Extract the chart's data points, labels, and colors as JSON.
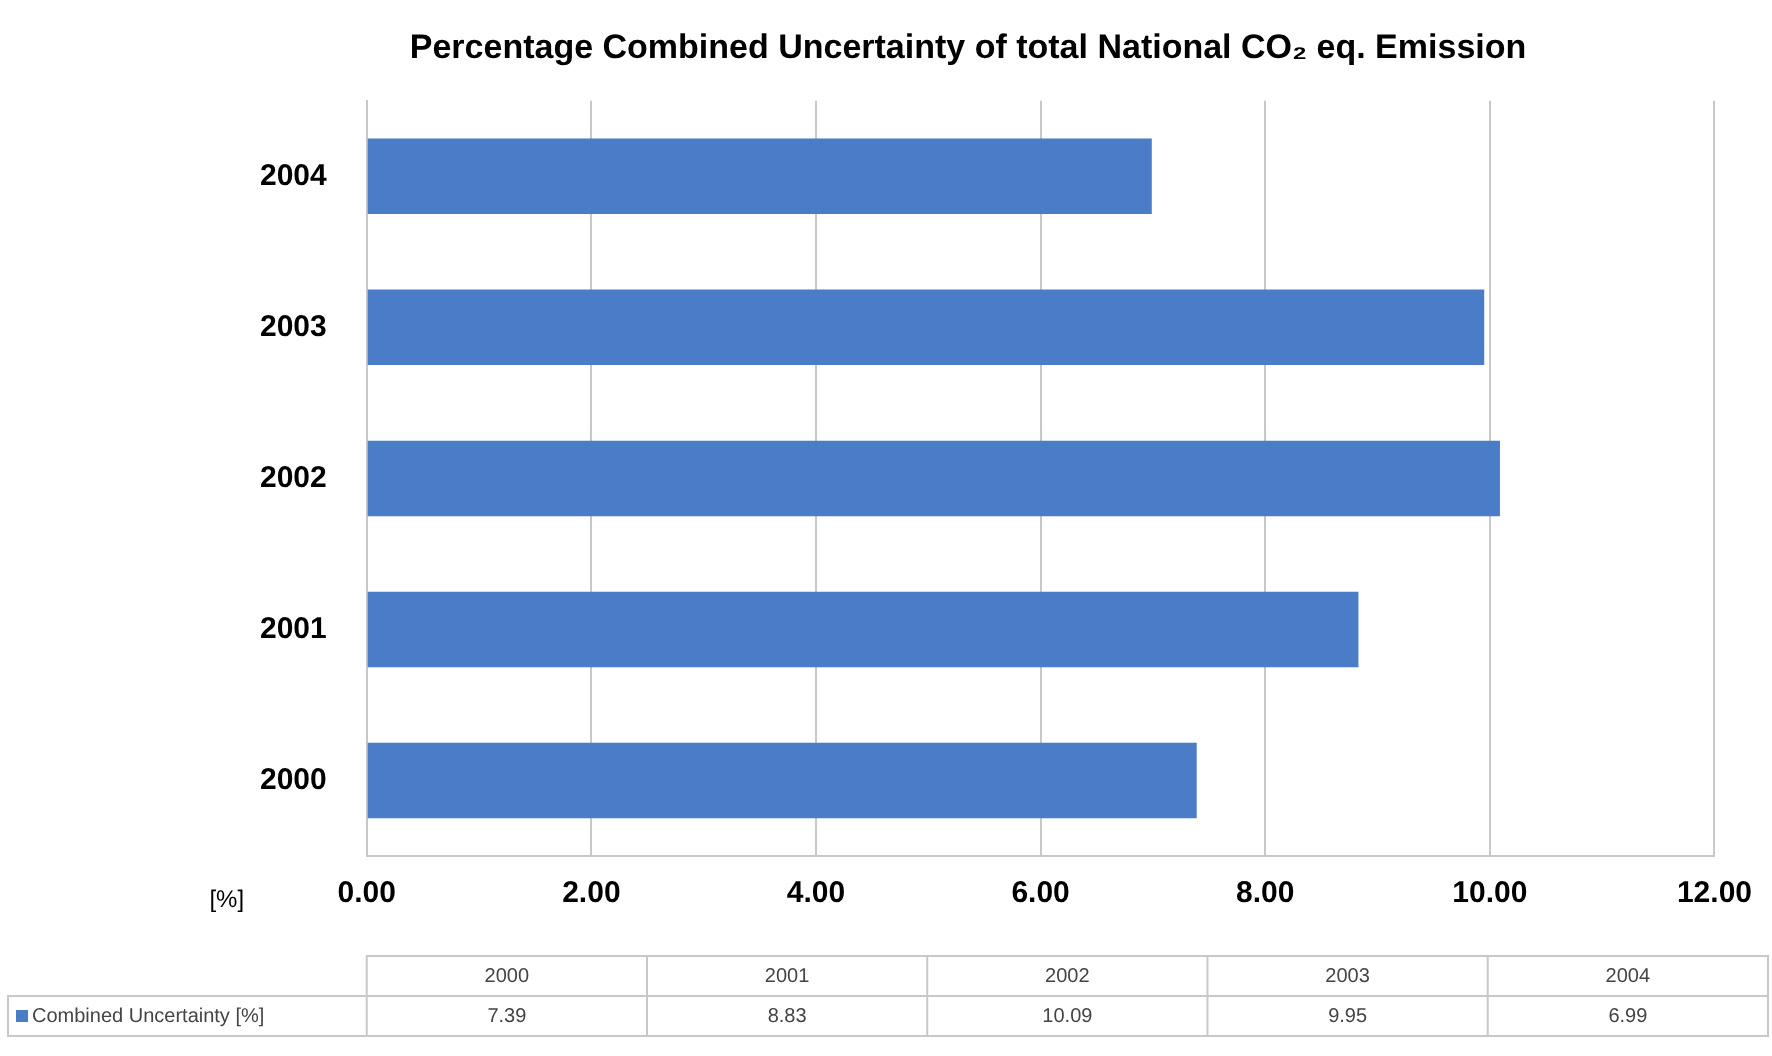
{
  "chart_data": {
    "type": "bar",
    "orientation": "horizontal",
    "title": "Percentage Combined Uncertainty of total National CO₂ eq. Emission",
    "xlabel": "[%]",
    "categories": [
      "2004",
      "2003",
      "2002",
      "2001",
      "2000"
    ],
    "series": [
      {
        "name": "Combined Uncertainty [%]",
        "color": "#4a7cc7",
        "values": [
          6.99,
          9.95,
          10.09,
          8.83,
          7.39
        ]
      }
    ],
    "xlim": [
      0,
      12
    ],
    "xticks": [
      {
        "value": 0,
        "label": "0.00"
      },
      {
        "value": 2,
        "label": "2.00"
      },
      {
        "value": 4,
        "label": "4.00"
      },
      {
        "value": 6,
        "label": "6.00"
      },
      {
        "value": 8,
        "label": "8.00"
      },
      {
        "value": 10,
        "label": "10.00"
      },
      {
        "value": 12,
        "label": "12.00"
      }
    ],
    "grid": "x",
    "legend": "bottom",
    "annotations": [
      "7.39",
      "8.83",
      "10.09",
      "9.95",
      "6.99"
    ]
  }
}
